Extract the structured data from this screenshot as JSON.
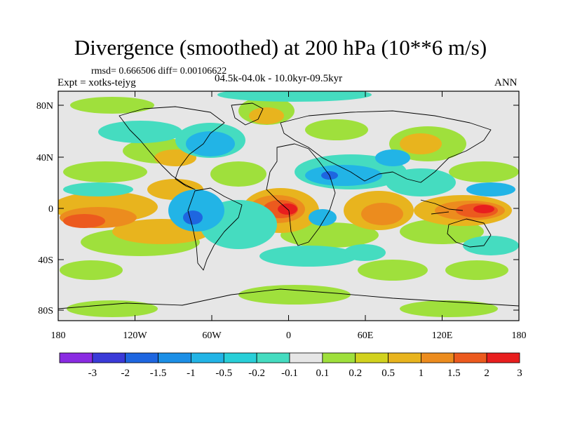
{
  "header": {
    "title": "Divergence (smoothed) at 200 hPa (10**6 m/s)",
    "stats": "rmsd= 0.666506 diff= 0.00106622",
    "experiment": "Expt = xotks-tejyg",
    "period": "04.5k-04.0k - 10.0kyr-09.5kyr",
    "season": "ANN"
  },
  "map": {
    "lat_ticks": [
      "80N",
      "40N",
      "0",
      "40S",
      "80S"
    ],
    "lon_ticks": [
      "180",
      "120W",
      "60W",
      "0",
      "60E",
      "120E",
      "180"
    ]
  },
  "colorbar": {
    "labels": [
      "-3",
      "-2",
      "-1.5",
      "-1",
      "-0.5",
      "-0.2",
      "-0.1",
      "0.1",
      "0.2",
      "0.5",
      "1",
      "1.5",
      "2",
      "3"
    ],
    "colors": [
      "#8a2be2",
      "#3a3ad8",
      "#1e66e0",
      "#1c8fe6",
      "#22b4e6",
      "#28cfd8",
      "#45dcc0",
      "#e6e6e6",
      "#9fe03c",
      "#d2d21e",
      "#e8b41e",
      "#ec8c1e",
      "#ec5a1e",
      "#e81e1e"
    ]
  }
}
